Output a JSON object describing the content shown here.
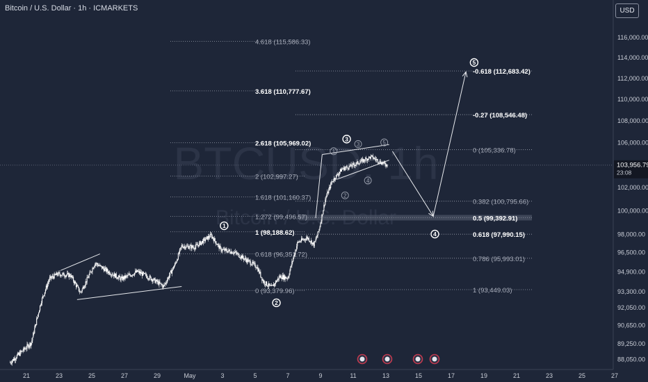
{
  "header": {
    "title": "Bitcoin / U.S. Dollar · 1h · ICMARKETS"
  },
  "currency_button": {
    "label": "USD"
  },
  "watermark": {
    "symbol": "BTCUSD, 1h",
    "name": "Bitcoin / U.S. Dollar"
  },
  "price_label": {
    "value": "103,956.79",
    "countdown": "23:08"
  },
  "colors": {
    "background": "#1e2638",
    "candle": "#ffffff",
    "axis_text": "#c9cdd6",
    "fib_line": "#9aa0ad",
    "fib_text_dim": "#a9aebb",
    "fib_text_bold": "#ffffff",
    "zone": "#4a5163"
  },
  "chart_data": {
    "type": "candlestick",
    "y_axis": {
      "scale": "log",
      "ticks": [
        "116,000.00",
        "114,000.00",
        "112,000.00",
        "110,000.00",
        "108,000.00",
        "106,000.00",
        "104,000.00",
        "102,000.00",
        "100,000.00",
        "98,000.00",
        "96,500.00",
        "94,900.00",
        "93,300.00",
        "92,050.00",
        "90,650.00",
        "89,250.00",
        "88,050.00"
      ],
      "tick_values": [
        116000,
        114000,
        112000,
        110000,
        108000,
        106000,
        104000,
        102000,
        100000,
        98000,
        96500,
        94900,
        93300,
        92050,
        90650,
        89250,
        88050
      ]
    },
    "x_axis": {
      "ticks": [
        "21",
        "23",
        "25",
        "27",
        "29",
        "May",
        "3",
        "5",
        "7",
        "9",
        "11",
        "13",
        "15",
        "17",
        "19",
        "21",
        "23",
        "25",
        "27"
      ],
      "tick_days": [
        -10,
        -8,
        -6,
        -4,
        -2,
        0,
        2,
        4,
        6,
        8,
        10,
        12,
        14,
        16,
        18,
        20,
        22,
        24,
        26
      ]
    },
    "candle_anchors": [
      {
        "day": -11.0,
        "price": 87800
      },
      {
        "day": -9.7,
        "price": 89300
      },
      {
        "day": -9.1,
        "price": 92500
      },
      {
        "day": -8.6,
        "price": 94300
      },
      {
        "day": -8.1,
        "price": 94700
      },
      {
        "day": -7.3,
        "price": 94600
      },
      {
        "day": -6.7,
        "price": 93200
      },
      {
        "day": -6.2,
        "price": 94500
      },
      {
        "day": -5.8,
        "price": 95600
      },
      {
        "day": -5.0,
        "price": 94900
      },
      {
        "day": -4.2,
        "price": 94300
      },
      {
        "day": -3.2,
        "price": 94900
      },
      {
        "day": -2.3,
        "price": 94300
      },
      {
        "day": -1.6,
        "price": 93700
      },
      {
        "day": -0.9,
        "price": 95500
      },
      {
        "day": -0.5,
        "price": 97000
      },
      {
        "day": 0.3,
        "price": 96900
      },
      {
        "day": 0.8,
        "price": 97400
      },
      {
        "day": 1.3,
        "price": 97900
      },
      {
        "day": 1.9,
        "price": 96700
      },
      {
        "day": 2.7,
        "price": 96500
      },
      {
        "day": 3.4,
        "price": 95900
      },
      {
        "day": 4.1,
        "price": 95300
      },
      {
        "day": 4.5,
        "price": 94100
      },
      {
        "day": 5.0,
        "price": 93600
      },
      {
        "day": 5.5,
        "price": 94500
      },
      {
        "day": 6.0,
        "price": 94400
      },
      {
        "day": 6.6,
        "price": 97300
      },
      {
        "day": 7.2,
        "price": 97700
      },
      {
        "day": 7.6,
        "price": 97100
      },
      {
        "day": 7.9,
        "price": 98300
      },
      {
        "day": 8.3,
        "price": 101000
      },
      {
        "day": 8.7,
        "price": 102500
      },
      {
        "day": 9.3,
        "price": 103600
      },
      {
        "day": 9.9,
        "price": 103900
      },
      {
        "day": 10.5,
        "price": 104300
      },
      {
        "day": 11.1,
        "price": 104700
      },
      {
        "day": 11.7,
        "price": 104200
      },
      {
        "day": 12.1,
        "price": 103950
      }
    ],
    "fib_left": [
      {
        "label": "4.618 (115,586.33)",
        "price": 115586.33,
        "bold": false
      },
      {
        "label": "3.618 (110,777.67)",
        "price": 110777.67,
        "bold": true
      },
      {
        "label": "2.618 (105,969.02)",
        "price": 105969.02,
        "bold": true
      },
      {
        "label": "2 (102,997.27)",
        "price": 102997.27,
        "bold": false
      },
      {
        "label": "1.618 (101,160.37)",
        "price": 101160.37,
        "bold": false
      },
      {
        "label": "1.272 (99,496.57)",
        "price": 99496.57,
        "bold": false
      },
      {
        "label": "1 (98,188.62)",
        "price": 98188.62,
        "bold": true
      },
      {
        "label": "0.618 (96,351.72)",
        "price": 96351.72,
        "bold": false
      },
      {
        "label": "0 (93,379.96)",
        "price": 93379.96,
        "bold": false
      }
    ],
    "fib_right": [
      {
        "label": "-0.618 (112,683.42)",
        "price": 112683.42,
        "bold": true
      },
      {
        "label": "-0.27 (108,546.48)",
        "price": 108546.48,
        "bold": true
      },
      {
        "label": "0 (105,336.78)",
        "price": 105336.78,
        "bold": false
      },
      {
        "label": "0.382 (100,795.66)",
        "price": 100795.66,
        "bold": false
      },
      {
        "label": "0.5 (99,392.91)",
        "price": 99392.91,
        "bold": true
      },
      {
        "label": "0.618 (97,990.15)",
        "price": 97990.15,
        "bold": true
      },
      {
        "label": "0.786 (95,993.01)",
        "price": 95993.01,
        "bold": false
      },
      {
        "label": "1 (93,449.03)",
        "price": 93449.03,
        "bold": false
      }
    ],
    "wave_labels": [
      {
        "label": "1",
        "day": 2.1,
        "price": 98700,
        "style": "major"
      },
      {
        "label": "2",
        "day": 5.3,
        "price": 92400,
        "style": "major"
      },
      {
        "label": "3",
        "day": 9.6,
        "price": 106300,
        "style": "major"
      },
      {
        "label": "4",
        "day": 15.0,
        "price": 98000,
        "style": "major"
      },
      {
        "label": "5",
        "day": 17.4,
        "price": 113500,
        "style": "major"
      },
      {
        "label": "1",
        "day": 8.8,
        "price": 105200,
        "style": "minor"
      },
      {
        "label": "2",
        "day": 9.5,
        "price": 101300,
        "style": "minor"
      },
      {
        "label": "3",
        "day": 10.3,
        "price": 105850,
        "style": "minor"
      },
      {
        "label": "4",
        "day": 10.9,
        "price": 102600,
        "style": "minor"
      },
      {
        "label": "5",
        "day": 11.9,
        "price": 106000,
        "style": "minor"
      }
    ],
    "projection_path": [
      {
        "day": 12.4,
        "price": 105200
      },
      {
        "day": 14.9,
        "price": 99500
      },
      {
        "day": 16.9,
        "price": 112600
      }
    ],
    "current_price": 103956.79
  }
}
